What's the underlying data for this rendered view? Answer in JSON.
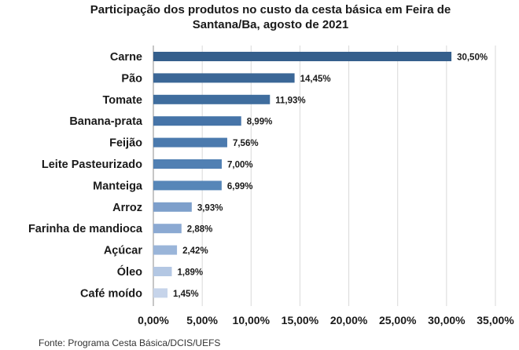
{
  "chart_data": {
    "type": "bar",
    "orientation": "horizontal",
    "title_lines": [
      "Participação dos produtos no custo da cesta básica em Feira de",
      "Santana/Ba, agosto de 2021"
    ],
    "categories": [
      "Carne",
      "Pão",
      "Tomate",
      "Banana-prata",
      "Feijão",
      "Leite Pasteurizado",
      "Manteiga",
      "Arroz",
      "Farinha de mandioca",
      "Açúcar",
      "Óleo",
      "Café moído"
    ],
    "values": [
      30.5,
      14.45,
      11.93,
      8.99,
      7.56,
      7.0,
      6.99,
      3.93,
      2.88,
      2.42,
      1.89,
      1.45
    ],
    "value_labels": [
      "30,50%",
      "14,45%",
      "11,93%",
      "8,99%",
      "7,56%",
      "7,00%",
      "6,99%",
      "3,93%",
      "2,88%",
      "2,42%",
      "1,89%",
      "1,45%"
    ],
    "colors": [
      "#355f8c",
      "#3b6797",
      "#3f6d9e",
      "#4674a8",
      "#4b7aae",
      "#5180b3",
      "#5686b8",
      "#7d9fcb",
      "#8ba9d2",
      "#9ab5d9",
      "#b3c7e3",
      "#c6d4ea"
    ],
    "xlim": [
      0,
      35
    ],
    "xticks": [
      0,
      5,
      10,
      15,
      20,
      25,
      30,
      35
    ],
    "xtick_labels": [
      "0,00%",
      "5,00%",
      "10,00%",
      "15,00%",
      "20,00%",
      "25,00%",
      "30,00%",
      "35,00%"
    ],
    "grid": true,
    "legend": "none",
    "source": "Fonte: Programa Cesta Básica/DCIS/UEFS"
  }
}
